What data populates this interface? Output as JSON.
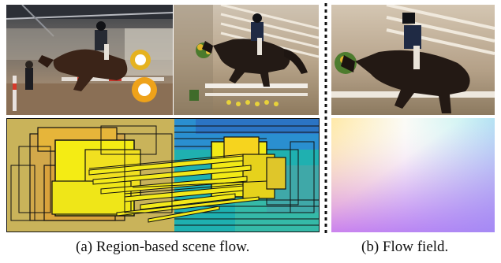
{
  "captions": {
    "a": "(a) Region-based scene flow.",
    "b": "(b) Flow field."
  },
  "colors": {
    "background_region": "#c8b45a",
    "bright_region": "#f5ee10",
    "outline": "#111111",
    "cool_region": "#21b4b2"
  }
}
